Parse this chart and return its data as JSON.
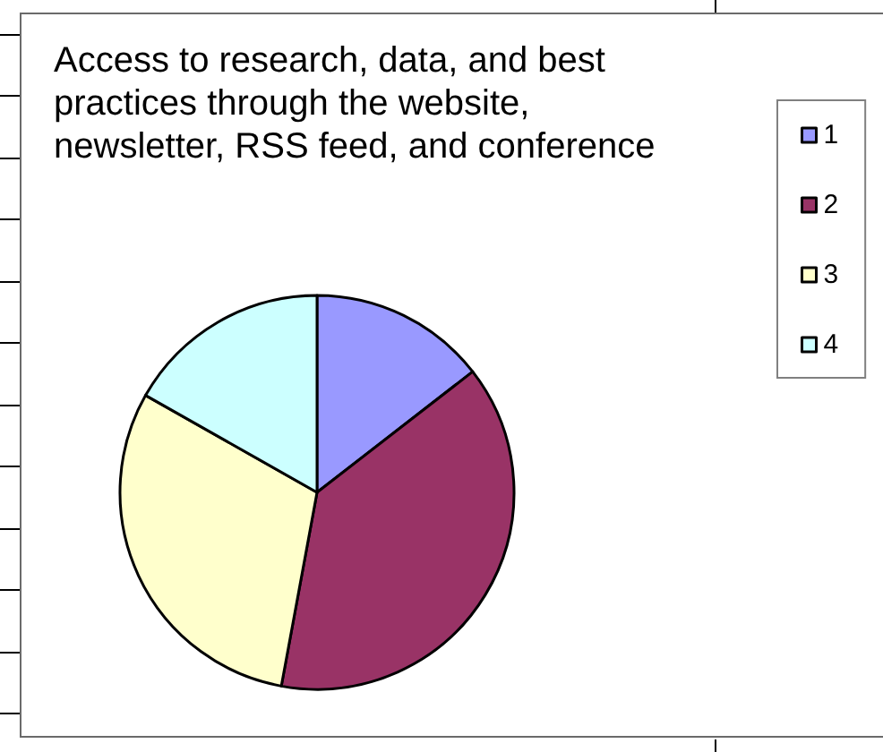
{
  "chart_data": {
    "type": "pie",
    "title": "Access to research, data, and best practices through the website, newsletter, RSS feed, and conference",
    "categories": [
      "1",
      "2",
      "3",
      "4"
    ],
    "values": [
      14.5,
      38.4,
      30.3,
      16.8
    ],
    "colors": [
      "#9999ff",
      "#993366",
      "#ffffcc",
      "#ccffff"
    ],
    "legend": "right"
  }
}
